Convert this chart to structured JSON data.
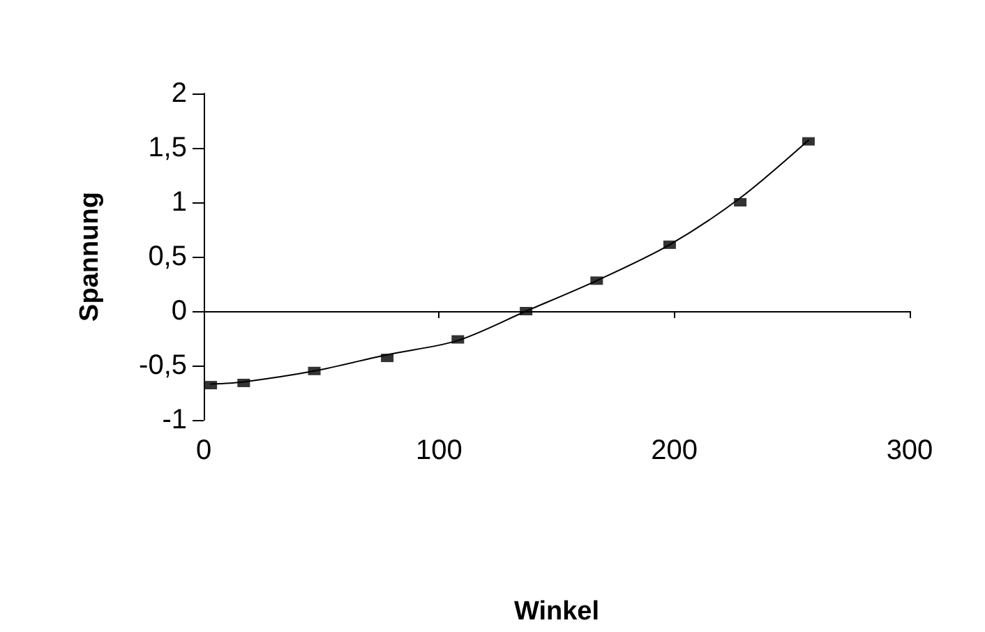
{
  "chart_data": {
    "type": "scatter",
    "xlabel": "Winkel",
    "ylabel": "Spannung",
    "xlim": [
      0,
      300
    ],
    "xticks": [
      0,
      100,
      200,
      300
    ],
    "ylim": [
      -1,
      2
    ],
    "yticks": [
      -1,
      {
        "value": -0.5,
        "label": "-0,5"
      },
      0,
      {
        "value": 0.5,
        "label": "0,5"
      },
      1,
      {
        "value": 1.5,
        "label": "1,5"
      },
      2
    ],
    "marker": "square",
    "series": [
      {
        "type": "line",
        "marker": "none",
        "color": "#000000",
        "x": [
          3,
          17,
          47,
          78,
          108,
          137,
          167,
          198,
          228,
          257
        ],
        "values": [
          -0.67,
          -0.65,
          -0.55,
          -0.4,
          -0.27,
          0,
          0.28,
          0.61,
          1.04,
          1.57
        ]
      },
      {
        "color": "#000000",
        "x": [
          3,
          17,
          47,
          78,
          108,
          137,
          167,
          198,
          228,
          257
        ],
        "values": [
          -0.68,
          -0.66,
          -0.55,
          -0.43,
          -0.26,
          0,
          0.28,
          0.61,
          1.0,
          1.56
        ]
      }
    ]
  }
}
